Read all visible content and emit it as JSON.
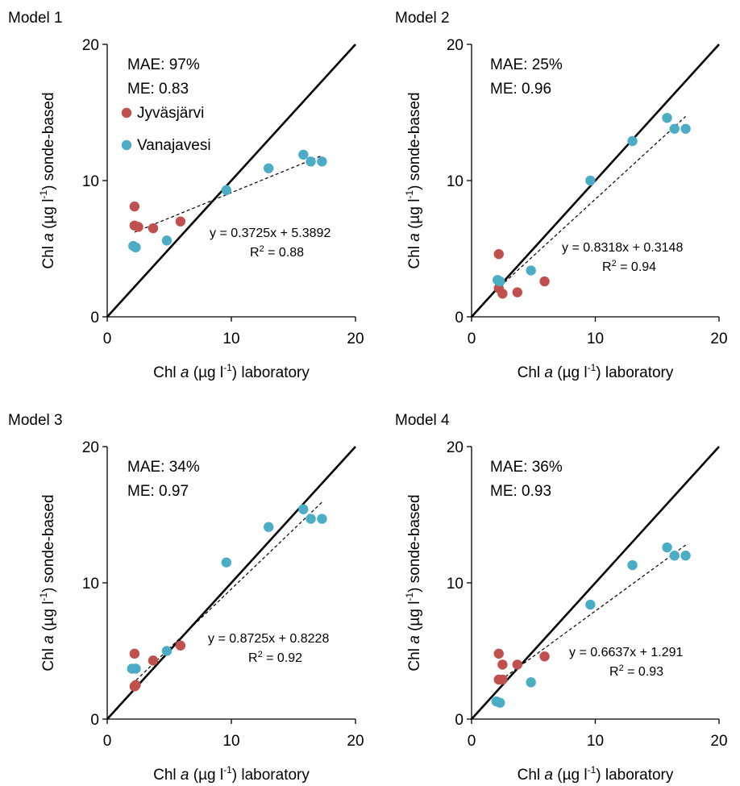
{
  "colors": {
    "Jyväsjärvi": "#c0504d",
    "Vanajavesi": "#4bacc6",
    "one_to_one": "#000000",
    "trend": "#000000"
  },
  "chart_data": [
    {
      "type": "scatter",
      "panel_label": "Model 1",
      "xlabel": {
        "pre": "Chl ",
        "italic": "a",
        "mid": " (µg l",
        "sup": "-1",
        "post": ") laboratory"
      },
      "ylabel": {
        "pre": "Chl ",
        "italic": "a",
        "mid": " (µg l",
        "sup": "-1",
        "post": ") sonde-based"
      },
      "xlim": [
        0,
        20
      ],
      "ylim": [
        0,
        20
      ],
      "xticks": [
        "0",
        "10",
        "20"
      ],
      "yticks": [
        "0",
        "10",
        "20"
      ],
      "grid": false,
      "one_to_one_line": true,
      "stats": [
        "MAE: 97%",
        "ME: 0.83"
      ],
      "legend": {
        "show": true,
        "placement": "top-left"
      },
      "trendline": {
        "slope": 0.3725,
        "intercept": 5.3892,
        "x_range": [
          2.2,
          17.3
        ],
        "equation": "y = 0.3725x + 5.3892",
        "r2": {
          "pre": "R",
          "sup": "2",
          "post": " = 0.88"
        }
      },
      "series": [
        {
          "name": "Jyväsjärvi",
          "points": [
            [
              2.2,
              8.1
            ],
            [
              2.2,
              6.7
            ],
            [
              2.5,
              6.6
            ],
            [
              3.7,
              6.5
            ],
            [
              5.9,
              7.0
            ]
          ]
        },
        {
          "name": "Vanajavesi",
          "points": [
            [
              2.1,
              5.2
            ],
            [
              2.3,
              5.1
            ],
            [
              4.8,
              5.6
            ],
            [
              9.6,
              9.3
            ],
            [
              13.0,
              10.9
            ],
            [
              15.8,
              11.9
            ],
            [
              16.4,
              11.4
            ],
            [
              17.3,
              11.4
            ]
          ]
        }
      ]
    },
    {
      "type": "scatter",
      "panel_label": "Model 2",
      "xlabel": {
        "pre": "Chl ",
        "italic": "a",
        "mid": " (µg l",
        "sup": "-1",
        "post": ") laboratory"
      },
      "ylabel": {
        "pre": "Chl ",
        "italic": "a",
        "mid": " (µg l",
        "sup": "-1",
        "post": ") sonde-based"
      },
      "xlim": [
        0,
        20
      ],
      "ylim": [
        0,
        20
      ],
      "xticks": [
        "0",
        "10",
        "20"
      ],
      "yticks": [
        "0",
        "10",
        "20"
      ],
      "grid": false,
      "one_to_one_line": true,
      "stats": [
        "MAE: 25%",
        "ME: 0.96"
      ],
      "legend": {
        "show": false
      },
      "trendline": {
        "slope": 0.8318,
        "intercept": 0.3148,
        "x_range": [
          2.0,
          17.3
        ],
        "equation": "y = 0.8318x + 0.3148",
        "r2": {
          "pre": "R",
          "sup": "2",
          "post": " = 0.94"
        }
      },
      "series": [
        {
          "name": "Jyväsjärvi",
          "points": [
            [
              2.2,
              4.6
            ],
            [
              2.2,
              2.1
            ],
            [
              2.5,
              1.7
            ],
            [
              3.7,
              1.8
            ],
            [
              5.9,
              2.6
            ]
          ]
        },
        {
          "name": "Vanajavesi",
          "points": [
            [
              2.1,
              2.7
            ],
            [
              2.3,
              2.6
            ],
            [
              4.8,
              3.4
            ],
            [
              9.6,
              10.0
            ],
            [
              13.0,
              12.9
            ],
            [
              15.8,
              14.6
            ],
            [
              16.4,
              13.8
            ],
            [
              17.3,
              13.8
            ]
          ]
        }
      ]
    },
    {
      "type": "scatter",
      "panel_label": "Model 3",
      "xlabel": {
        "pre": "Chl ",
        "italic": "a",
        "mid": " (µg l",
        "sup": "-1",
        "post": ") laboratory"
      },
      "ylabel": {
        "pre": "Chl ",
        "italic": "a",
        "mid": " (µg l",
        "sup": "-1",
        "post": ") sonde-based"
      },
      "xlim": [
        0,
        20
      ],
      "ylim": [
        0,
        20
      ],
      "xticks": [
        "0",
        "10",
        "20"
      ],
      "yticks": [
        "0",
        "10",
        "20"
      ],
      "grid": false,
      "one_to_one_line": true,
      "stats": [
        "MAE: 34%",
        "ME: 0.97"
      ],
      "legend": {
        "show": false
      },
      "trendline": {
        "slope": 0.8725,
        "intercept": 0.8228,
        "x_range": [
          2.0,
          17.3
        ],
        "equation": "y = 0.8725x + 0.8228",
        "r2": {
          "pre": "R",
          "sup": "2",
          "post": " = 0.92"
        }
      },
      "series": [
        {
          "name": "Jyväsjärvi",
          "points": [
            [
              2.2,
              4.8
            ],
            [
              2.2,
              2.4
            ],
            [
              2.3,
              2.5
            ],
            [
              3.7,
              4.3
            ],
            [
              5.9,
              5.4
            ]
          ]
        },
        {
          "name": "Vanajavesi",
          "points": [
            [
              2.0,
              3.7
            ],
            [
              2.3,
              3.7
            ],
            [
              4.8,
              5.0
            ],
            [
              9.6,
              11.5
            ],
            [
              13.0,
              14.1
            ],
            [
              15.8,
              15.4
            ],
            [
              16.4,
              14.7
            ],
            [
              17.3,
              14.7
            ]
          ]
        }
      ]
    },
    {
      "type": "scatter",
      "panel_label": "Model 4",
      "xlabel": {
        "pre": "Chl ",
        "italic": "a",
        "mid": " (µg l",
        "sup": "-1",
        "post": ") laboratory"
      },
      "ylabel": {
        "pre": "Chl ",
        "italic": "a",
        "mid": " (µg l",
        "sup": "-1",
        "post": ") sonde-based"
      },
      "xlim": [
        0,
        20
      ],
      "ylim": [
        0,
        20
      ],
      "xticks": [
        "0",
        "10",
        "20"
      ],
      "yticks": [
        "0",
        "10",
        "20"
      ],
      "grid": false,
      "one_to_one_line": true,
      "stats": [
        "MAE: 36%",
        "ME: 0.93"
      ],
      "legend": {
        "show": false
      },
      "trendline": {
        "slope": 0.6637,
        "intercept": 1.291,
        "x_range": [
          2.0,
          17.3
        ],
        "equation": "y = 0.6637x + 1.291",
        "r2": {
          "pre": "R",
          "sup": "2",
          "post": " = 0.93"
        }
      },
      "series": [
        {
          "name": "Jyväsjärvi",
          "points": [
            [
              2.2,
              4.8
            ],
            [
              2.5,
              4.0
            ],
            [
              2.2,
              2.9
            ],
            [
              2.5,
              2.9
            ],
            [
              3.7,
              4.0
            ],
            [
              5.9,
              4.6
            ]
          ]
        },
        {
          "name": "Vanajavesi",
          "points": [
            [
              2.0,
              1.3
            ],
            [
              2.3,
              1.2
            ],
            [
              4.8,
              2.7
            ],
            [
              9.6,
              8.4
            ],
            [
              13.0,
              11.3
            ],
            [
              15.8,
              12.6
            ],
            [
              16.4,
              12.0
            ],
            [
              17.3,
              12.0
            ]
          ]
        }
      ]
    }
  ]
}
